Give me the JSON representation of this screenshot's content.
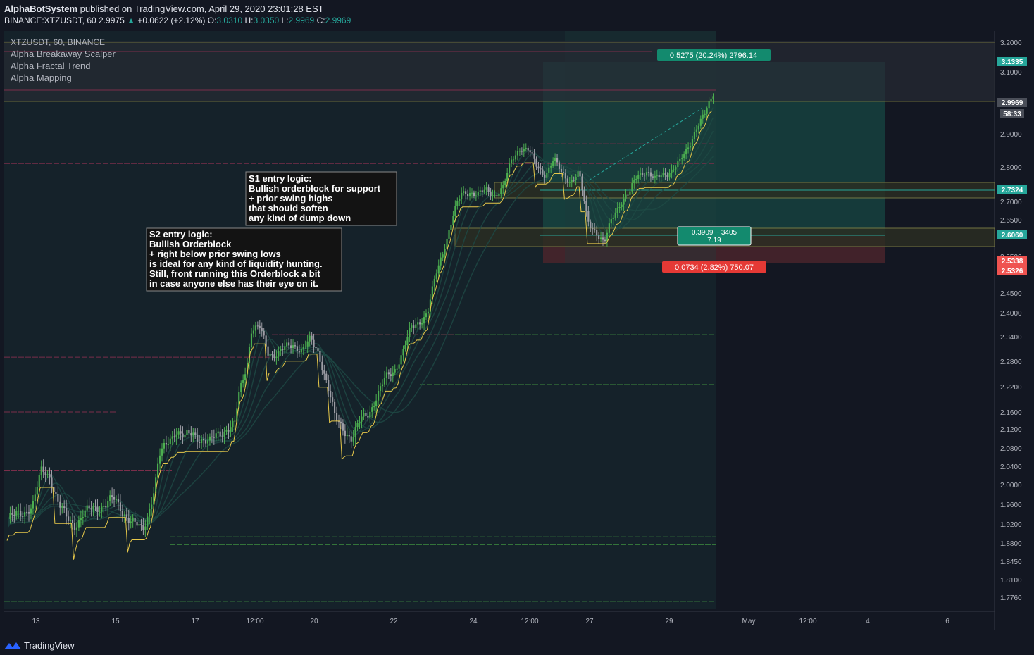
{
  "header": {
    "publisher": "AlphaBotSystem",
    "published_text": "published on TradingView.com, April 29, 2020 23:01:28 EST",
    "symbol_line": "BINANCE:XTZUSDT, 60",
    "last": "2.9975",
    "change": "+0.0622 (+2.12%)",
    "o_label": "O:",
    "o_val": "3.0310",
    "h_label": "H:",
    "h_val": "3.0350",
    "l_label": "L:",
    "l_val": "2.9969",
    "c_label": "C:",
    "c_val": "2.9969"
  },
  "legend": {
    "symbol": "XTZUSDT, 60, BINANCE",
    "indicators": [
      "Alpha Breakaway Scalper",
      "Alpha Fractal Trend",
      "Alpha Mapping"
    ]
  },
  "annotations": {
    "s1": [
      "S1 entry logic:",
      "Bullish orderblock for support",
      "+ prior swing highs",
      "that should soften",
      "any kind of dump down"
    ],
    "s2": [
      "S2 entry logic:",
      "Bullish Orderblock",
      "+ right below prior swing lows",
      "is ideal for any kind of liquidity hunting.",
      "Still, front running this Orderblock a bit",
      "in case anyone else has their eye on it."
    ]
  },
  "position_tool": {
    "target_label": "0.5275 (20.24%) 2796.14",
    "middle_label_1": "0.3909 ~ 3405",
    "middle_label_2": "7.19",
    "stop_label": "0.0734 (2.82%) 750.07"
  },
  "price_tags": [
    {
      "text": "3.1335",
      "color": "#26a69a"
    },
    {
      "text": "2.9969",
      "color": "#4a4e58"
    },
    {
      "text": "58:33",
      "color": "#4a4e58"
    },
    {
      "text": "2.7324",
      "color": "#26a69a"
    },
    {
      "text": "2.6060",
      "color": "#26a69a"
    },
    {
      "text": "2.5338",
      "color": "#ef5350"
    },
    {
      "text": "2.5326",
      "color": "#ef5350"
    }
  ],
  "footer": {
    "brand": "TradingView"
  },
  "colors": {
    "background": "#131722",
    "up_candle": "#4caf50",
    "down_candle": "#9e9ea6",
    "target_zone": "#1b5e52",
    "stop_zone": "#5b2a2f",
    "trend_line": "#ffeb3b"
  },
  "chart_data": {
    "type": "candlestick",
    "symbol": "XTZUSDT",
    "interval": "60",
    "exchange": "BINANCE",
    "y_ticks": [
      3.2,
      3.1,
      2.9,
      2.8,
      2.7,
      2.65,
      2.55,
      2.45,
      2.4,
      2.34,
      2.28,
      2.22,
      2.16,
      2.12,
      2.08,
      2.04,
      2.0,
      1.96,
      1.92,
      1.88,
      1.845,
      1.81,
      1.776
    ],
    "y_tick_labels": [
      "3.2000",
      "3.1000",
      "2.9000",
      "2.8000",
      "2.7000",
      "2.6500",
      "2.5500",
      "2.4500",
      "2.4000",
      "2.3400",
      "2.2800",
      "2.2200",
      "2.1600",
      "2.1200",
      "2.0800",
      "2.0400",
      "2.0000",
      "1.9600",
      "1.9200",
      "1.8800",
      "1.8450",
      "1.8100",
      "1.7760"
    ],
    "x_tick_labels": [
      "13",
      "15",
      "17",
      "12:00",
      "20",
      "22",
      "24",
      "12:00",
      "27",
      "29",
      "May",
      "12:00",
      "4",
      "6"
    ],
    "price_path": [
      [
        0,
        1.93
      ],
      [
        3,
        1.94
      ],
      [
        6,
        1.96
      ],
      [
        8,
        2.03
      ],
      [
        10,
        2.02
      ],
      [
        12,
        1.96
      ],
      [
        14,
        1.93
      ],
      [
        16,
        1.92
      ],
      [
        18,
        1.94
      ],
      [
        20,
        1.95
      ],
      [
        23,
        1.96
      ],
      [
        25,
        1.97
      ],
      [
        26,
        1.96
      ],
      [
        28,
        1.94
      ],
      [
        30,
        1.92
      ],
      [
        32,
        1.905
      ],
      [
        33,
        1.93
      ],
      [
        35,
        2.0
      ],
      [
        36,
        2.06
      ],
      [
        38,
        2.09
      ],
      [
        40,
        2.12
      ],
      [
        42,
        2.1
      ],
      [
        44,
        2.11
      ],
      [
        46,
        2.1
      ],
      [
        48,
        2.09
      ],
      [
        50,
        2.11
      ],
      [
        52,
        2.12
      ],
      [
        54,
        2.13
      ],
      [
        55,
        2.2
      ],
      [
        57,
        2.28
      ],
      [
        58,
        2.36
      ],
      [
        60,
        2.36
      ],
      [
        62,
        2.3
      ],
      [
        64,
        2.3
      ],
      [
        66,
        2.31
      ],
      [
        68,
        2.32
      ],
      [
        70,
        2.31
      ],
      [
        72,
        2.33
      ],
      [
        74,
        2.3
      ],
      [
        76,
        2.23
      ],
      [
        78,
        2.14
      ],
      [
        80,
        2.12
      ],
      [
        82,
        2.1
      ],
      [
        84,
        2.14
      ],
      [
        86,
        2.16
      ],
      [
        88,
        2.2
      ],
      [
        90,
        2.24
      ],
      [
        92,
        2.26
      ],
      [
        94,
        2.3
      ],
      [
        96,
        2.36
      ],
      [
        98,
        2.38
      ],
      [
        100,
        2.4
      ],
      [
        102,
        2.5
      ],
      [
        104,
        2.58
      ],
      [
        106,
        2.66
      ],
      [
        108,
        2.72
      ],
      [
        110,
        2.73
      ],
      [
        112,
        2.72
      ],
      [
        114,
        2.73
      ],
      [
        116,
        2.72
      ],
      [
        118,
        2.74
      ],
      [
        120,
        2.82
      ],
      [
        122,
        2.86
      ],
      [
        124,
        2.85
      ],
      [
        126,
        2.8
      ],
      [
        128,
        2.78
      ],
      [
        130,
        2.82
      ],
      [
        132,
        2.78
      ],
      [
        134,
        2.76
      ],
      [
        136,
        2.78
      ],
      [
        138,
        2.65
      ],
      [
        140,
        2.62
      ],
      [
        142,
        2.58
      ],
      [
        144,
        2.66
      ],
      [
        146,
        2.7
      ],
      [
        148,
        2.72
      ],
      [
        150,
        2.78
      ],
      [
        152,
        2.79
      ],
      [
        154,
        2.76
      ],
      [
        156,
        2.78
      ],
      [
        158,
        2.79
      ],
      [
        160,
        2.81
      ],
      [
        162,
        2.86
      ],
      [
        164,
        2.92
      ],
      [
        166,
        2.96
      ],
      [
        168,
        3.03
      ]
    ]
  }
}
